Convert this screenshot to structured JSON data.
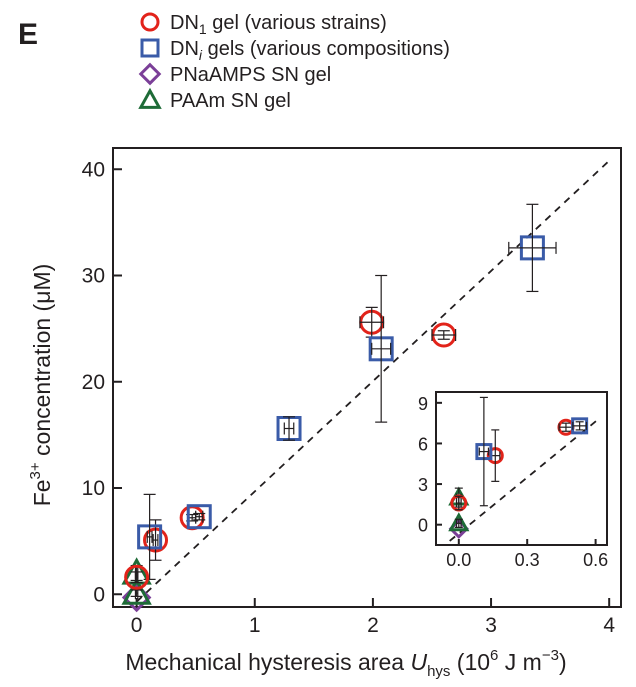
{
  "panel_label": "E",
  "colors": {
    "dn1": "#e2231a",
    "dni": "#3a5ba8",
    "pnaamps": "#7b3f98",
    "paam": "#1e6b37",
    "ink": "#231f20"
  },
  "legend": [
    {
      "key": "dn1",
      "marker": "circle",
      "main": "DN",
      "sub": "1",
      "italic_sub": false,
      "rest": " gel (various strains)"
    },
    {
      "key": "dni",
      "marker": "square",
      "main": "DN",
      "sub": "i",
      "italic_sub": true,
      "rest": " gels (various compositions)"
    },
    {
      "key": "pnaamps",
      "marker": "diamond",
      "main": "PNaAMPS SN gel",
      "sub": "",
      "italic_sub": false,
      "rest": ""
    },
    {
      "key": "paam",
      "marker": "triangle",
      "main": "PAAm SN gel",
      "sub": "",
      "italic_sub": false,
      "rest": ""
    }
  ],
  "axes": {
    "ylabel_main": "Fe",
    "ylabel_sup": "3+",
    "ylabel_rest": " concentration (μM)",
    "xlabel_main": "Mechanical hysteresis area ",
    "xlabel_var": "U",
    "xlabel_varsub": "hys",
    "xlabel_unit_a": " (10",
    "xlabel_unit_sup1": "6",
    "xlabel_unit_b": " J m",
    "xlabel_unit_sup2": "−3",
    "xlabel_unit_c": ")"
  },
  "chart_data": {
    "type": "scatter",
    "main": {
      "xlim": [
        -0.2,
        4.1
      ],
      "ylim": [
        -1.2,
        42
      ],
      "xticks": [
        "0",
        "1",
        "2",
        "3",
        "4"
      ],
      "xtick_values": [
        0,
        1,
        2,
        3,
        4
      ],
      "yticks": [
        "0",
        "10",
        "20",
        "30",
        "40"
      ],
      "ytick_values": [
        0,
        10,
        20,
        30,
        40
      ],
      "fit_line": {
        "x": [
          0.0,
          4.0
        ],
        "y": [
          -0.7,
          40.8
        ],
        "style": "dashed"
      }
    },
    "inset": {
      "xlim": [
        -0.1,
        0.65
      ],
      "ylim": [
        -1.5,
        9.8
      ],
      "xticks": [
        "0.0",
        "0.3",
        "0.6"
      ],
      "xtick_values": [
        0,
        0.3,
        0.6
      ],
      "yticks": [
        "0",
        "3",
        "6",
        "9"
      ],
      "ytick_values": [
        0,
        3,
        6,
        9
      ],
      "fit_line": {
        "x": [
          -0.04,
          0.62
        ],
        "y": [
          -1.2,
          7.9
        ],
        "style": "dashed"
      }
    },
    "series": [
      {
        "key": "dn1",
        "name": "DN1 gel (various strains)",
        "marker": "circle",
        "points": [
          {
            "x": 0.16,
            "y": 5.1,
            "xerr": 0.02,
            "yerr": 1.9
          },
          {
            "x": 0.47,
            "y": 7.2,
            "xerr": 0.03,
            "yerr": 0.3
          },
          {
            "x": 1.99,
            "y": 25.6,
            "xerr": 0.1,
            "yerr": 1.4
          },
          {
            "x": 2.6,
            "y": 24.4,
            "xerr": 0.1,
            "yerr": 0.4
          }
        ]
      },
      {
        "key": "dni",
        "name": "DNi gels (various compositions)",
        "marker": "square",
        "points": [
          {
            "x": 0.11,
            "y": 5.4,
            "xerr": 0.02,
            "yerr": 4.0
          },
          {
            "x": 0.53,
            "y": 7.3,
            "xerr": 0.03,
            "yerr": 0.3
          },
          {
            "x": 1.29,
            "y": 15.6,
            "xerr": 0.04,
            "yerr": 1.1
          },
          {
            "x": 2.07,
            "y": 23.1,
            "xerr": 0.08,
            "yerr": 6.9
          },
          {
            "x": 3.35,
            "y": 32.6,
            "xerr": 0.2,
            "yerr": 4.1
          }
        ]
      },
      {
        "key": "pnaamps",
        "name": "PNaAMPS SN gel",
        "marker": "diamond",
        "points": [
          {
            "x": 0.0,
            "y": -0.3,
            "xerr": 0,
            "yerr": 0
          }
        ]
      },
      {
        "key": "paam",
        "name": "PAAm SN gel",
        "marker": "triangle",
        "points": [
          {
            "x": 0.0,
            "y": 2.0,
            "xerr": 0.01,
            "yerr": 0.7
          },
          {
            "x": 0.0,
            "y": 0.1,
            "xerr": 0.01,
            "yerr": 0.3
          }
        ]
      },
      {
        "key": "dn1",
        "name": "DN1 gel (various strains)",
        "marker": "circle",
        "points": [
          {
            "x": 0.0,
            "y": 1.6,
            "xerr": 0.01,
            "yerr": 0.5
          }
        ]
      }
    ]
  }
}
